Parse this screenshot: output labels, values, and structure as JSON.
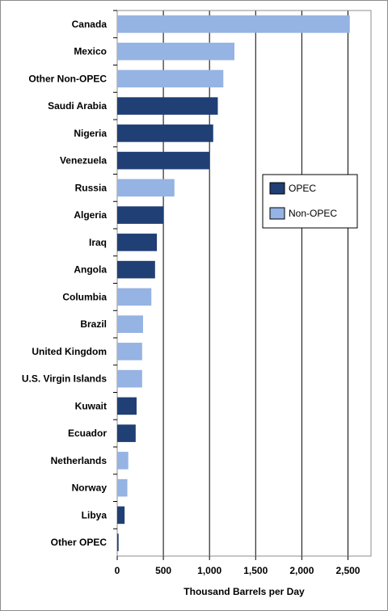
{
  "chart_data": {
    "type": "bar",
    "orientation": "horizontal",
    "title": "",
    "xlabel": "Thousand Barrels per Day",
    "ylabel": "",
    "xlim": [
      0,
      2750
    ],
    "xticks": [
      0,
      500,
      1000,
      1500,
      2000,
      2500
    ],
    "xtick_labels": [
      "0",
      "500",
      "1,000",
      "1,500",
      "2,000",
      "2,500"
    ],
    "grid": "vertical",
    "categories": [
      "Canada",
      "Mexico",
      "Other Non-OPEC",
      "Saudi Arabia",
      "Nigeria",
      "Venezuela",
      "Russia",
      "Algeria",
      "Iraq",
      "Angola",
      "Columbia",
      "Brazil",
      "United Kingdom",
      "U.S. Virgin Islands",
      "Kuwait",
      "Ecuador",
      "Netherlands",
      "Norway",
      "Libya",
      "Other OPEC"
    ],
    "values": [
      2520,
      1270,
      1150,
      1090,
      1040,
      1000,
      620,
      500,
      430,
      410,
      370,
      280,
      270,
      270,
      210,
      200,
      120,
      110,
      80,
      15
    ],
    "groups": [
      "Non-OPEC",
      "Non-OPEC",
      "Non-OPEC",
      "OPEC",
      "OPEC",
      "OPEC",
      "Non-OPEC",
      "OPEC",
      "OPEC",
      "OPEC",
      "Non-OPEC",
      "Non-OPEC",
      "Non-OPEC",
      "Non-OPEC",
      "OPEC",
      "OPEC",
      "Non-OPEC",
      "Non-OPEC",
      "OPEC",
      "OPEC"
    ],
    "legend": {
      "placement": "right-middle",
      "entries": [
        {
          "name": "OPEC",
          "color": "#1f3f75"
        },
        {
          "name": "Non-OPEC",
          "color": "#95b3e3"
        }
      ]
    }
  }
}
